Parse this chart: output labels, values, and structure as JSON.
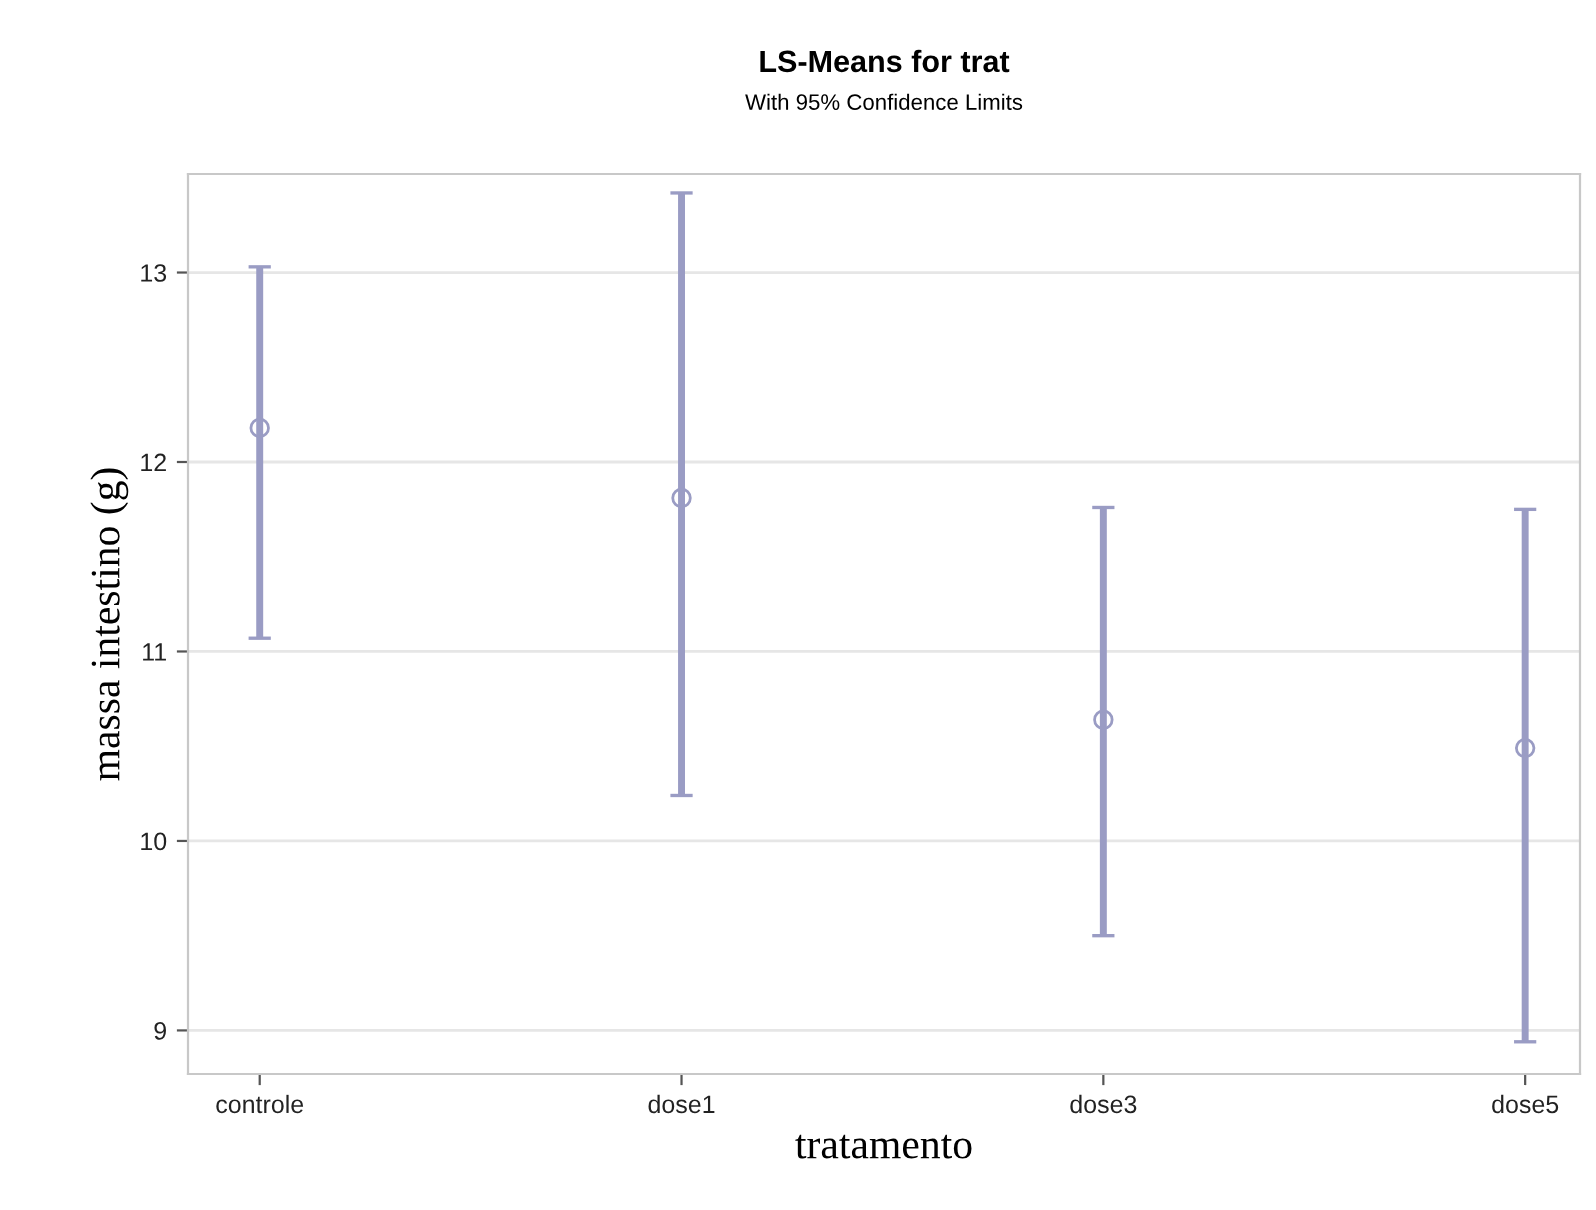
{
  "chart_data": {
    "type": "scatter",
    "title": "LS-Means for trat",
    "subtitle": "With 95% Confidence Limits",
    "xlabel": "tratamento",
    "ylabel": "massa intestino (g)",
    "categories": [
      "controle",
      "dose1",
      "dose3",
      "dose5"
    ],
    "values": [
      12.18,
      11.81,
      10.64,
      10.49
    ],
    "errors": [
      [
        11.07,
        13.03
      ],
      [
        10.24,
        13.42
      ],
      [
        9.5,
        11.76
      ],
      [
        8.94,
        11.75
      ]
    ],
    "color": "#9a9cc4",
    "marker": "circle",
    "grid": "y",
    "ylim": [
      8.77,
      13.52
    ],
    "yticks": [
      9,
      10,
      11,
      12,
      13
    ]
  }
}
